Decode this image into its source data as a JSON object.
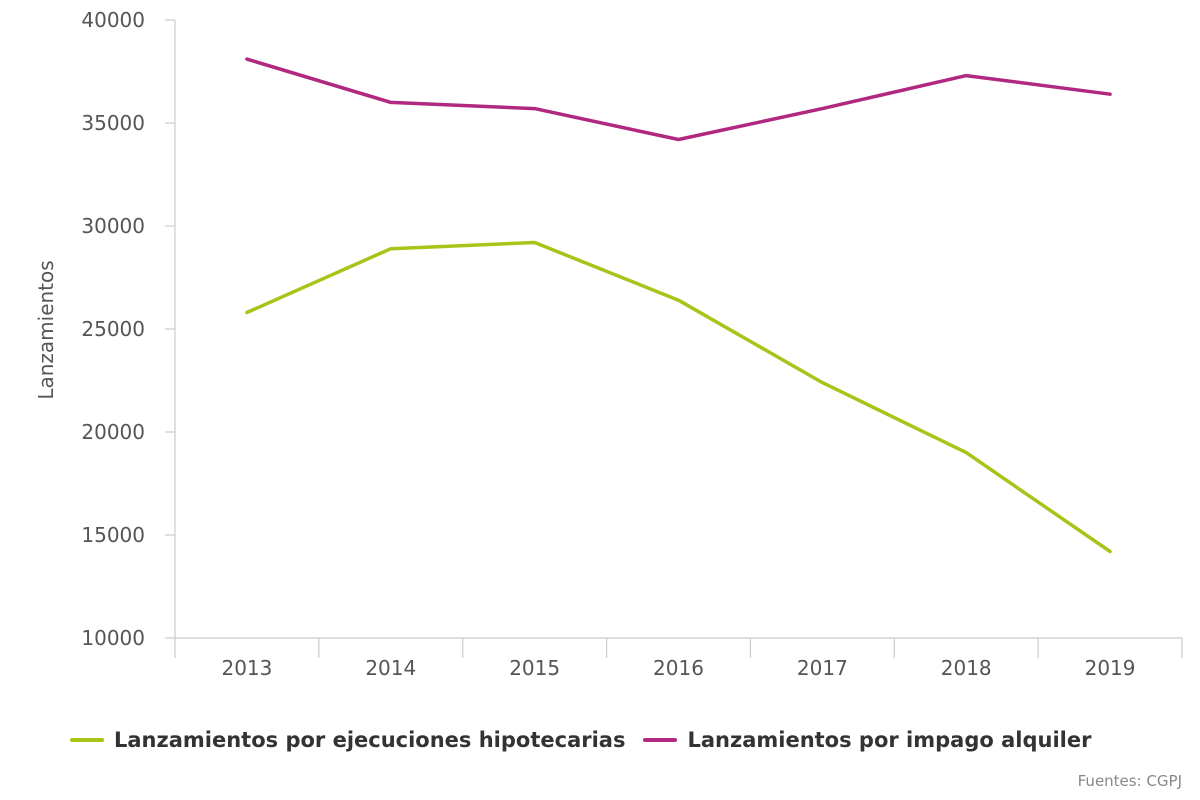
{
  "chart_data": {
    "type": "line",
    "categories": [
      "2013",
      "2014",
      "2015",
      "2016",
      "2017",
      "2018",
      "2019"
    ],
    "series": [
      {
        "name": "Lanzamientos por ejecuciones hipotecarias",
        "color": "#a8c418",
        "values": [
          25800,
          28900,
          29200,
          26400,
          22400,
          19000,
          14200
        ]
      },
      {
        "name": "Lanzamientos por impago alquiler",
        "color": "#b0287f",
        "values": [
          38100,
          36000,
          35700,
          34200,
          35700,
          37300,
          36400
        ]
      }
    ],
    "ylabel": "Lanzamientos",
    "ylim": [
      10000,
      40000
    ],
    "yticks": [
      "10000",
      "15000",
      "20000",
      "25000",
      "30000",
      "35000",
      "40000"
    ],
    "legend_position": "bottom-left",
    "grid": false
  },
  "source": "Fuentes: CGPJ"
}
